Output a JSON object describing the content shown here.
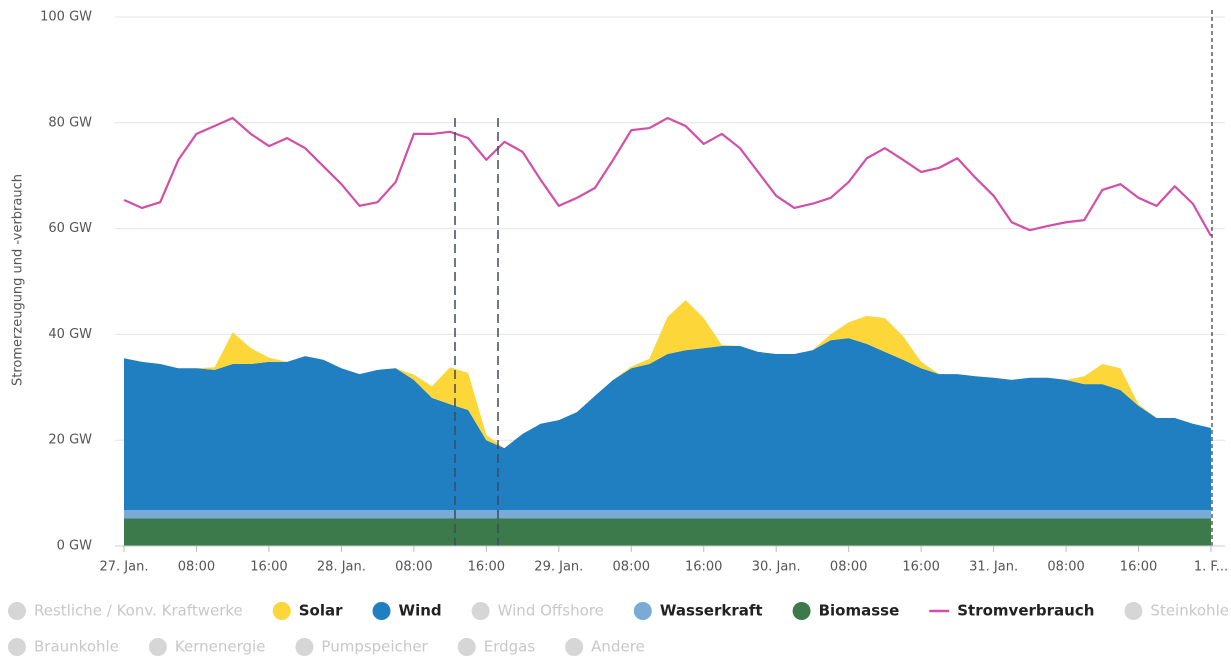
{
  "chart_data": {
    "type": "area",
    "y_axis_title": "Stromerzeugung und -verbrauch",
    "categories": [
      "27. Jan.",
      null,
      null,
      null,
      "08:00",
      null,
      null,
      null,
      "16:00",
      null,
      null,
      null,
      "28. Jan.",
      null,
      null,
      null,
      "08:00",
      null,
      null,
      null,
      "16:00",
      null,
      null,
      null,
      "29. Jan.",
      null,
      null,
      null,
      "08:00",
      null,
      null,
      null,
      "16:00",
      null,
      null,
      null,
      "30. Jan.",
      null,
      null,
      null,
      "08:00",
      null,
      null,
      null,
      "16:00",
      null,
      null,
      null,
      "31. Jan.",
      null,
      null,
      null,
      "08:00",
      null,
      null,
      null,
      "16:00",
      null,
      null,
      null,
      "1. F..."
    ],
    "ylim": [
      0,
      100
    ],
    "yticks": [
      {
        "value": 0,
        "label": "0 GW"
      },
      {
        "value": 20,
        "label": "20 GW"
      },
      {
        "value": 40,
        "label": "40 GW"
      },
      {
        "value": 60,
        "label": "60 GW"
      },
      {
        "value": 80,
        "label": "80 GW"
      },
      {
        "value": 100,
        "label": "100 GW"
      }
    ],
    "grid": true,
    "stacked": true,
    "series": [
      {
        "name": "Restliche / Konv. Kraftwerke",
        "color": "#d6d6d6",
        "visible": false
      },
      {
        "name": "Solar",
        "color": "#fdd73a",
        "type": "area",
        "values": [
          0,
          0,
          0,
          0,
          0,
          0.5,
          6,
          3,
          0.8,
          0,
          0,
          0,
          0,
          0,
          0,
          0,
          1,
          2.2,
          7,
          7,
          1,
          0,
          0,
          0,
          0,
          0,
          0,
          0,
          0.3,
          1,
          7,
          9.5,
          5.7,
          0.2,
          0,
          0,
          0,
          0,
          0,
          1.1,
          3,
          5.3,
          6.4,
          4.5,
          1.2,
          0,
          0,
          0,
          0,
          0,
          0,
          0,
          0,
          1.5,
          3.8,
          4.1,
          0.3,
          0,
          0,
          0,
          0
        ]
      },
      {
        "name": "Wind",
        "color": "#1f7fc0",
        "type": "area",
        "values": [
          28.7,
          28,
          27.6,
          26.8,
          26.8,
          26.5,
          27.6,
          27.6,
          28,
          28,
          29.1,
          28.4,
          26.8,
          25.7,
          26.5,
          26.8,
          24.6,
          21.2,
          20,
          18.9,
          13.2,
          11.7,
          14.4,
          16.3,
          17,
          18.5,
          21.6,
          24.6,
          26.8,
          27.6,
          29.5,
          30.2,
          30.6,
          31,
          31,
          29.9,
          29.5,
          29.5,
          30.2,
          32.1,
          32.5,
          31.4,
          29.9,
          28.4,
          26.8,
          25.7,
          25.7,
          25.3,
          25,
          24.6,
          25,
          25,
          24.6,
          23.8,
          23.8,
          22.7,
          19.7,
          17.4,
          17.4,
          16.3,
          15.5
        ]
      },
      {
        "name": "Wind Offshore",
        "color": "#d6d6d6",
        "visible": false
      },
      {
        "name": "Wasserkraft",
        "color": "#7aaad6",
        "type": "area",
        "values": [
          1.6,
          1.6,
          1.6,
          1.6,
          1.6,
          1.6,
          1.6,
          1.6,
          1.6,
          1.6,
          1.6,
          1.6,
          1.6,
          1.6,
          1.6,
          1.6,
          1.6,
          1.6,
          1.6,
          1.6,
          1.6,
          1.6,
          1.6,
          1.6,
          1.6,
          1.6,
          1.6,
          1.6,
          1.6,
          1.6,
          1.6,
          1.6,
          1.6,
          1.6,
          1.6,
          1.6,
          1.6,
          1.6,
          1.6,
          1.6,
          1.6,
          1.6,
          1.6,
          1.6,
          1.6,
          1.6,
          1.6,
          1.6,
          1.6,
          1.6,
          1.6,
          1.6,
          1.6,
          1.6,
          1.6,
          1.6,
          1.6,
          1.6,
          1.6,
          1.6,
          1.6
        ]
      },
      {
        "name": "Biomasse",
        "color": "#3d7a4b",
        "type": "area",
        "values": [
          5.2,
          5.2,
          5.2,
          5.2,
          5.2,
          5.2,
          5.2,
          5.2,
          5.2,
          5.2,
          5.2,
          5.2,
          5.2,
          5.2,
          5.2,
          5.2,
          5.2,
          5.2,
          5.2,
          5.2,
          5.2,
          5.2,
          5.2,
          5.2,
          5.2,
          5.2,
          5.2,
          5.2,
          5.2,
          5.2,
          5.2,
          5.2,
          5.2,
          5.2,
          5.2,
          5.2,
          5.2,
          5.2,
          5.2,
          5.2,
          5.2,
          5.2,
          5.2,
          5.2,
          5.2,
          5.2,
          5.2,
          5.2,
          5.2,
          5.2,
          5.2,
          5.2,
          5.2,
          5.2,
          5.2,
          5.2,
          5.2,
          5.2,
          5.2,
          5.2,
          5.2
        ]
      },
      {
        "name": "Stromverbrauch",
        "color": "#d24fa8",
        "type": "line",
        "values": [
          65.4,
          63.9,
          65,
          73,
          77.9,
          79.4,
          80.9,
          77.9,
          75.6,
          77.1,
          75.2,
          71.8,
          68.4,
          64.3,
          65,
          68.8,
          77.9,
          77.9,
          78.3,
          77.1,
          73,
          76.4,
          74.5,
          69.2,
          64.3,
          65.8,
          67.7,
          73,
          78.6,
          79,
          80.9,
          79.4,
          76,
          77.9,
          75.2,
          70.7,
          66.2,
          63.9,
          64.7,
          65.8,
          68.8,
          73.3,
          75.2,
          73,
          70.7,
          71.5,
          73.3,
          69.6,
          66.2,
          61.2,
          59.7,
          60.5,
          61.2,
          61.6,
          67.3,
          68.4,
          65.8,
          64.3,
          68,
          64.7,
          58.6
        ]
      },
      {
        "name": "Steinkohle",
        "color": "#d6d6d6",
        "visible": false
      },
      {
        "name": "Braunkohle",
        "color": "#d6d6d6",
        "visible": false
      },
      {
        "name": "Kernenergie",
        "color": "#d6d6d6",
        "visible": false
      },
      {
        "name": "Pumpspeicher",
        "color": "#d6d6d6",
        "visible": false
      },
      {
        "name": "Erdgas",
        "color": "#d6d6d6",
        "visible": false
      },
      {
        "name": "Andere",
        "color": "#d6d6d6",
        "visible": false
      }
    ]
  }
}
